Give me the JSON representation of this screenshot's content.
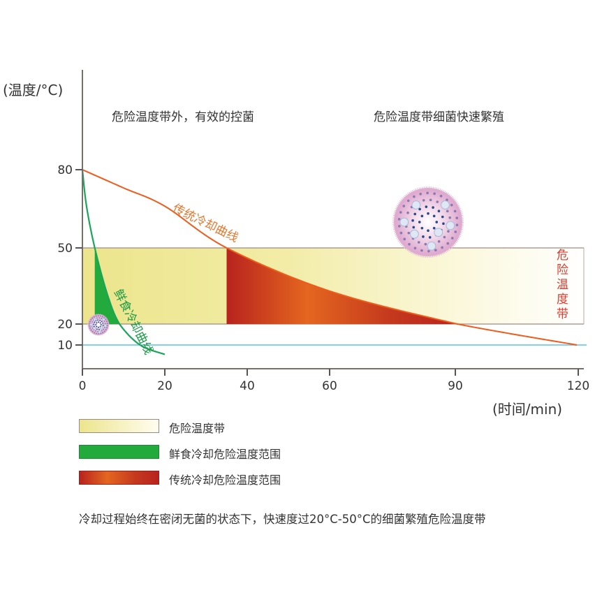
{
  "chart_data": {
    "type": "line",
    "y_label": "(温度/°C)",
    "x_label": "(时间/min)",
    "x_ticks": [
      0,
      20,
      40,
      60,
      90,
      120
    ],
    "y_ticks": [
      80,
      50,
      20,
      10
    ],
    "danger_zone": {
      "min": 20,
      "max": 50,
      "label": "危险温度带"
    },
    "reference_line": {
      "y": 10
    },
    "series": [
      {
        "name": "传统冷却曲线",
        "color": "#f05a1a",
        "points": [
          [
            0,
            80
          ],
          [
            10,
            73
          ],
          [
            20,
            66
          ],
          [
            35,
            50
          ],
          [
            60,
            33
          ],
          [
            91,
            20
          ],
          [
            120,
            10
          ]
        ],
        "danger_interval": [
          35,
          91
        ]
      },
      {
        "name": "鲜食冷却曲线",
        "color": "#1aa55a",
        "points": [
          [
            0,
            80
          ],
          [
            1,
            66
          ],
          [
            3,
            50
          ],
          [
            6,
            32
          ],
          [
            9,
            20
          ],
          [
            14,
            10
          ],
          [
            20,
            5.5
          ]
        ],
        "danger_interval": [
          3,
          9
        ]
      }
    ],
    "annotations": {
      "left": "危险温度带外，有效的控菌",
      "right": "危险温度带细菌快速繁殖"
    }
  },
  "legend": [
    {
      "label": "危险温度带"
    },
    {
      "label": "鲜食冷却危险温度范围"
    },
    {
      "label": "传统冷却危险温度范围"
    }
  ],
  "footer": "冷却过程始终在密闭无菌的状态下，快速度过20°C-50°C的细菌繁殖危险温度带"
}
